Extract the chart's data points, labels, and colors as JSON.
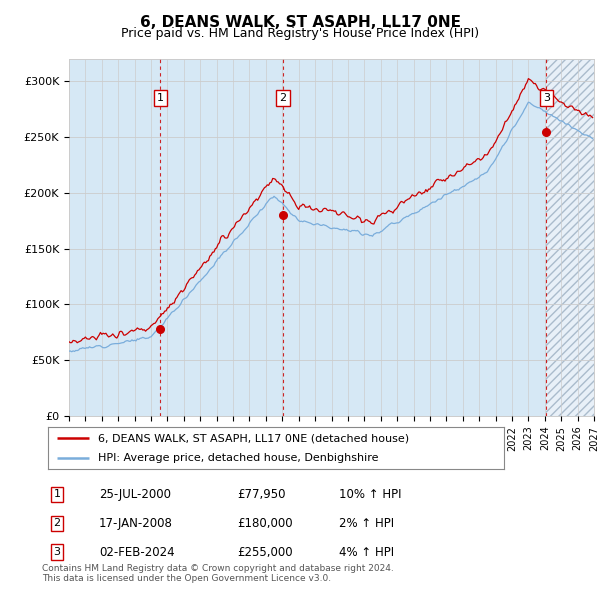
{
  "title": "6, DEANS WALK, ST ASAPH, LL17 0NE",
  "subtitle": "Price paid vs. HM Land Registry's House Price Index (HPI)",
  "ylim": [
    0,
    320000
  ],
  "yticks": [
    0,
    50000,
    100000,
    150000,
    200000,
    250000,
    300000
  ],
  "ytick_labels": [
    "£0",
    "£50K",
    "£100K",
    "£150K",
    "£200K",
    "£250K",
    "£300K"
  ],
  "x_start_year": 1995,
  "x_end_year": 2027,
  "purchases": [
    {
      "date_decimal": 2000.56,
      "price": 77950,
      "label": "1"
    },
    {
      "date_decimal": 2008.05,
      "price": 180000,
      "label": "2"
    },
    {
      "date_decimal": 2024.09,
      "price": 255000,
      "label": "3"
    }
  ],
  "table_rows": [
    {
      "num": "1",
      "date": "25-JUL-2000",
      "price": "£77,950",
      "hpi": "10% ↑ HPI"
    },
    {
      "num": "2",
      "date": "17-JAN-2008",
      "price": "£180,000",
      "hpi": "2% ↑ HPI"
    },
    {
      "num": "3",
      "date": "02-FEB-2024",
      "price": "£255,000",
      "hpi": "4% ↑ HPI"
    }
  ],
  "legend_line1": "6, DEANS WALK, ST ASAPH, LL17 0NE (detached house)",
  "legend_line2": "HPI: Average price, detached house, Denbighshire",
  "footnote": "Contains HM Land Registry data © Crown copyright and database right 2024.\nThis data is licensed under the Open Government Licence v3.0.",
  "hpi_color": "#7aaddb",
  "price_color": "#cc0000",
  "shade_color": "#d6e8f5",
  "vline_color": "#cc0000",
  "background_color": "#ffffff",
  "grid_color": "#cccccc",
  "title_fontsize": 11,
  "subtitle_fontsize": 9
}
